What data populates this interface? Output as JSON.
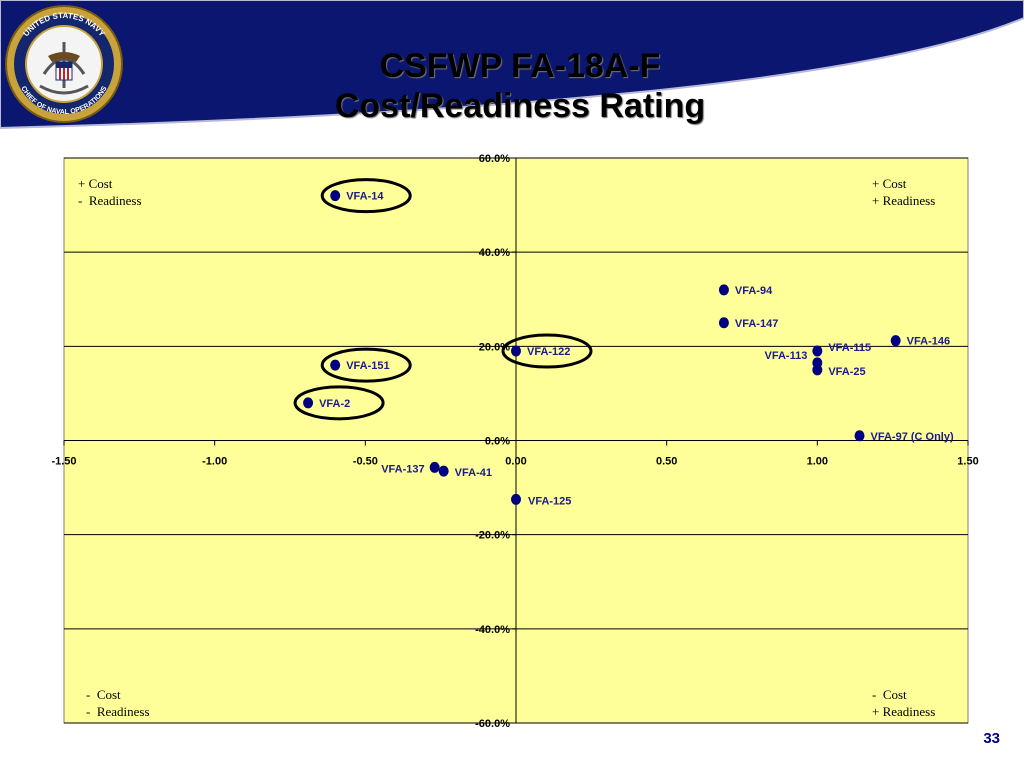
{
  "title": {
    "line1": "CSFWP FA-18A-F",
    "line2": "Cost/Readiness Rating"
  },
  "seal": {
    "text_top": "UNITED STATES NAVY",
    "text_bottom": "CHIEF OF NAVAL OPERATIONS"
  },
  "page_number": "33",
  "colors": {
    "banner": "#0a1670",
    "plot_bg": "#ffff99",
    "point": "#000080",
    "label": "#1a1a8c"
  },
  "chart_data": {
    "type": "scatter",
    "title": "",
    "xlabel": "",
    "ylabel": "",
    "xlim": [
      -1.5,
      1.5
    ],
    "ylim": [
      -60,
      60
    ],
    "x_ticks": [
      -1.5,
      -1.0,
      -0.5,
      0.0,
      0.5,
      1.0,
      1.5
    ],
    "x_tick_labels": [
      "-1.50",
      "-1.00",
      "-0.50",
      "0.00",
      "0.50",
      "1.00",
      "1.50"
    ],
    "y_ticks": [
      60,
      40,
      20,
      0,
      -20,
      -40,
      -60
    ],
    "y_tick_labels": [
      "60.0%",
      "40.0%",
      "20.0%",
      "0.0%",
      "-20.0%",
      "-40.0%",
      "-60.0%"
    ],
    "grid": "horizontal",
    "quadrant_labels": [
      {
        "position": "top-left",
        "line1": "+ Cost",
        "line2": "-  Readiness"
      },
      {
        "position": "top-right",
        "line1": "+ Cost",
        "line2": "+ Readiness"
      },
      {
        "position": "bottom-left",
        "line1": "-  Cost",
        "line2": "-  Readiness"
      },
      {
        "position": "bottom-right",
        "line1": "-  Cost",
        "line2": "+ Readiness"
      }
    ],
    "points": [
      {
        "name": "VFA-14",
        "x": -0.6,
        "y": 52,
        "circled": true
      },
      {
        "name": "VFA-94",
        "x": 0.69,
        "y": 32,
        "circled": false
      },
      {
        "name": "VFA-147",
        "x": 0.69,
        "y": 25,
        "circled": false
      },
      {
        "name": "VFA-146",
        "x": 1.26,
        "y": 21.2,
        "circled": false
      },
      {
        "name": "VFA-122",
        "x": 0.0,
        "y": 19,
        "circled": true
      },
      {
        "name": "VFA-115",
        "x": 1.0,
        "y": 19,
        "circled": false
      },
      {
        "name": "VFA-113",
        "x": 1.0,
        "y": 16.5,
        "circled": false
      },
      {
        "name": "VFA-25",
        "x": 1.0,
        "y": 15,
        "circled": false
      },
      {
        "name": "VFA-151",
        "x": -0.6,
        "y": 16,
        "circled": true
      },
      {
        "name": "VFA-2",
        "x": -0.69,
        "y": 8,
        "circled": true
      },
      {
        "name": "VFA-97 (C Only)",
        "x": 1.14,
        "y": 1,
        "circled": false
      },
      {
        "name": "VFA-137",
        "x": -0.27,
        "y": -5.7,
        "circled": false
      },
      {
        "name": "VFA-41",
        "x": -0.24,
        "y": -6.5,
        "circled": false
      },
      {
        "name": "VFA-125",
        "x": 0.0,
        "y": -12.5,
        "circled": false
      }
    ]
  }
}
